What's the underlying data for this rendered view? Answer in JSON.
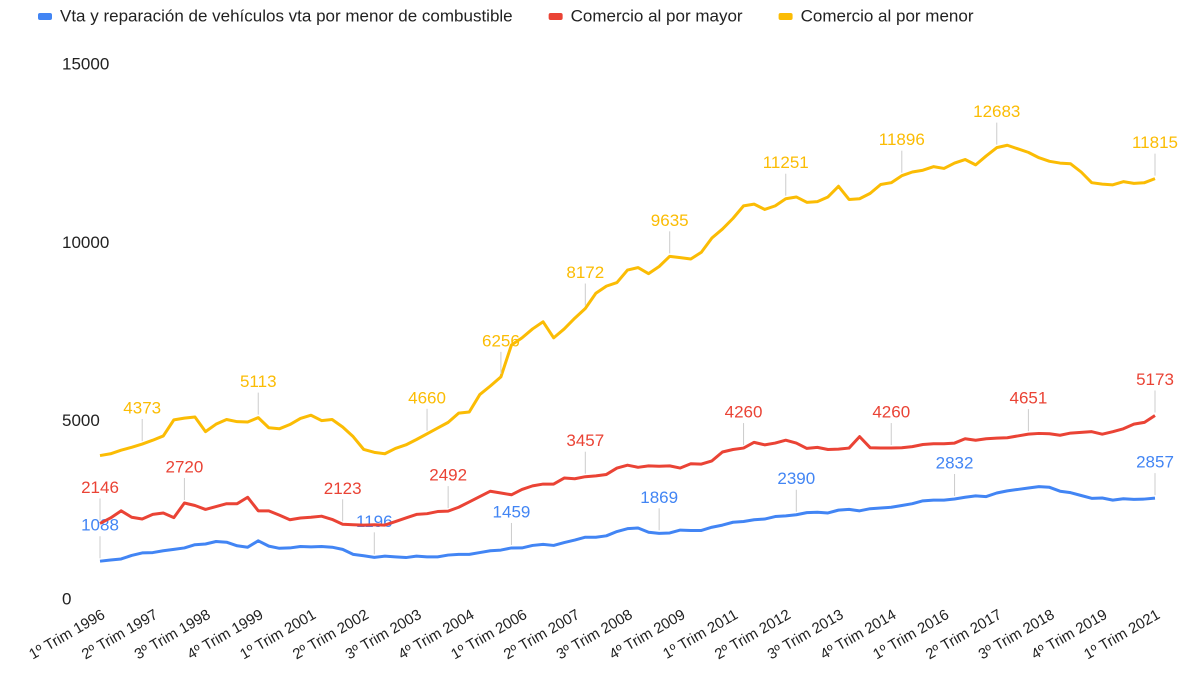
{
  "chart_data": {
    "type": "line",
    "categories": [
      "1º Trim 1996",
      null,
      null,
      null,
      null,
      "2º Trim 1997",
      null,
      null,
      null,
      null,
      "3º Trim 1998",
      null,
      null,
      null,
      null,
      "4º Trim 1999",
      null,
      null,
      null,
      null,
      "1º Trim 2001",
      null,
      null,
      null,
      null,
      "2º Trim 2002",
      null,
      null,
      null,
      null,
      "3º Trim 2003",
      null,
      null,
      null,
      null,
      "4º Trim 2004",
      null,
      null,
      null,
      null,
      "1º Trim 2006",
      null,
      null,
      null,
      null,
      "2º Trim 2007",
      null,
      null,
      null,
      null,
      "3º Trim 2008",
      null,
      null,
      null,
      null,
      "4º Trim 2009",
      null,
      null,
      null,
      null,
      "1º Trim 2011",
      null,
      null,
      null,
      null,
      "2º Trim 2012",
      null,
      null,
      null,
      null,
      "3º Trim 2013",
      null,
      null,
      null,
      null,
      "4º Trim 2014",
      null,
      null,
      null,
      null,
      "1º Trim 2016",
      null,
      null,
      null,
      null,
      "2º Trim 2017",
      null,
      null,
      null,
      null,
      "3º Trim 2018",
      null,
      null,
      null,
      null,
      "4º Trim 2019",
      null,
      null,
      null,
      null,
      "1º Trim 2021"
    ],
    "series": [
      {
        "name": "Vta y reparación de vehículos vta por menor de combustible",
        "color": "#4285f4",
        "values": [
          1088,
          1120,
          1150,
          1250,
          1320,
          1330,
          1380,
          1420,
          1460,
          1550,
          1570,
          1640,
          1620,
          1520,
          1480,
          1660,
          1510,
          1450,
          1460,
          1500,
          1490,
          1500,
          1480,
          1420,
          1280,
          1240,
          1196,
          1230,
          1210,
          1190,
          1230,
          1210,
          1210,
          1260,
          1280,
          1280,
          1330,
          1380,
          1400,
          1459,
          1460,
          1530,
          1560,
          1530,
          1610,
          1680,
          1760,
          1760,
          1800,
          1920,
          2000,
          2020,
          1900,
          1869,
          1880,
          1960,
          1950,
          1950,
          2040,
          2100,
          2180,
          2200,
          2250,
          2270,
          2340,
          2360,
          2390,
          2450,
          2460,
          2440,
          2520,
          2540,
          2500,
          2560,
          2580,
          2600,
          2650,
          2700,
          2780,
          2800,
          2800,
          2832,
          2880,
          2920,
          2900,
          3000,
          3060,
          3100,
          3140,
          3180,
          3160,
          3050,
          3010,
          2930,
          2850,
          2860,
          2800,
          2840,
          2820,
          2830,
          2857
        ],
        "value_labels": [
          "1088",
          null,
          null,
          null,
          null,
          null,
          null,
          null,
          null,
          null,
          null,
          null,
          null,
          null,
          null,
          null,
          null,
          null,
          null,
          null,
          null,
          null,
          null,
          null,
          null,
          null,
          "1196",
          null,
          null,
          null,
          null,
          null,
          null,
          null,
          null,
          null,
          null,
          null,
          null,
          "1459",
          null,
          null,
          null,
          null,
          null,
          null,
          null,
          null,
          null,
          null,
          null,
          null,
          null,
          "1869",
          null,
          null,
          null,
          null,
          null,
          null,
          null,
          null,
          null,
          null,
          null,
          null,
          "2390",
          null,
          null,
          null,
          null,
          null,
          null,
          null,
          null,
          null,
          null,
          null,
          null,
          null,
          null,
          "2832",
          null,
          null,
          null,
          null,
          null,
          null,
          null,
          null,
          null,
          null,
          null,
          null,
          null,
          null,
          null,
          null,
          null,
          null,
          "2857"
        ]
      },
      {
        "name": "Comercio al por mayor",
        "color": "#ea4335",
        "values": [
          2146,
          2300,
          2500,
          2320,
          2270,
          2400,
          2440,
          2310,
          2720,
          2650,
          2540,
          2620,
          2700,
          2700,
          2880,
          2500,
          2500,
          2380,
          2250,
          2300,
          2320,
          2350,
          2260,
          2123,
          2110,
          2100,
          2110,
          2100,
          2200,
          2300,
          2400,
          2420,
          2480,
          2492,
          2600,
          2750,
          2900,
          3050,
          3000,
          2950,
          3100,
          3200,
          3250,
          3250,
          3420,
          3400,
          3457,
          3480,
          3520,
          3700,
          3780,
          3720,
          3760,
          3750,
          3760,
          3700,
          3820,
          3810,
          3900,
          4150,
          4220,
          4260,
          4420,
          4350,
          4400,
          4480,
          4400,
          4250,
          4280,
          4220,
          4230,
          4260,
          4580,
          4270,
          4260,
          4260,
          4270,
          4300,
          4360,
          4380,
          4380,
          4400,
          4520,
          4480,
          4520,
          4540,
          4550,
          4600,
          4651,
          4670,
          4660,
          4620,
          4680,
          4700,
          4720,
          4650,
          4720,
          4800,
          4930,
          4980,
          5173
        ],
        "value_labels": [
          "2146",
          null,
          null,
          null,
          null,
          null,
          null,
          null,
          "2720",
          null,
          null,
          null,
          null,
          null,
          null,
          null,
          null,
          null,
          null,
          null,
          null,
          null,
          null,
          "2123",
          null,
          null,
          null,
          null,
          null,
          null,
          null,
          null,
          null,
          "2492",
          null,
          null,
          null,
          null,
          null,
          null,
          null,
          null,
          null,
          null,
          null,
          null,
          "3457",
          null,
          null,
          null,
          null,
          null,
          null,
          null,
          null,
          null,
          null,
          null,
          null,
          null,
          null,
          "4260",
          null,
          null,
          null,
          null,
          null,
          null,
          null,
          null,
          null,
          null,
          null,
          null,
          null,
          "4260",
          null,
          null,
          null,
          null,
          null,
          null,
          null,
          null,
          null,
          null,
          null,
          null,
          "4651",
          null,
          null,
          null,
          null,
          null,
          null,
          null,
          null,
          null,
          null,
          null,
          "5173"
        ]
      },
      {
        "name": "Comercio al por menor",
        "color": "#fbbc04",
        "values": [
          4050,
          4100,
          4200,
          4280,
          4373,
          4480,
          4600,
          5050,
          5100,
          5130,
          4720,
          4930,
          5060,
          5000,
          4990,
          5113,
          4830,
          4800,
          4920,
          5090,
          5180,
          5030,
          5060,
          4850,
          4580,
          4220,
          4140,
          4100,
          4250,
          4350,
          4500,
          4660,
          4820,
          4980,
          5240,
          5270,
          5760,
          6000,
          6256,
          7150,
          7350,
          7600,
          7800,
          7350,
          7600,
          7900,
          8172,
          8600,
          8800,
          8900,
          9250,
          9320,
          9150,
          9350,
          9635,
          9600,
          9560,
          9750,
          10150,
          10400,
          10700,
          11050,
          11100,
          10950,
          11050,
          11251,
          11300,
          11150,
          11170,
          11300,
          11600,
          11230,
          11250,
          11400,
          11650,
          11700,
          11896,
          12000,
          12050,
          12150,
          12100,
          12250,
          12350,
          12200,
          12450,
          12683,
          12750,
          12650,
          12550,
          12400,
          12300,
          12250,
          12230,
          12000,
          11700,
          11660,
          11640,
          11730,
          11680,
          11700,
          11815
        ],
        "value_labels": [
          null,
          null,
          null,
          null,
          "4373",
          null,
          null,
          null,
          null,
          null,
          null,
          null,
          null,
          null,
          null,
          "5113",
          null,
          null,
          null,
          null,
          null,
          null,
          null,
          null,
          null,
          null,
          null,
          null,
          null,
          null,
          null,
          "4660",
          null,
          null,
          null,
          null,
          null,
          null,
          "6256",
          null,
          null,
          null,
          null,
          null,
          null,
          null,
          "8172",
          null,
          null,
          null,
          null,
          null,
          null,
          null,
          "9635",
          null,
          null,
          null,
          null,
          null,
          null,
          null,
          null,
          null,
          null,
          "11251",
          null,
          null,
          null,
          null,
          null,
          null,
          null,
          null,
          null,
          null,
          "11896",
          null,
          null,
          null,
          null,
          null,
          null,
          null,
          null,
          "12683",
          null,
          null,
          null,
          null,
          null,
          null,
          null,
          null,
          null,
          null,
          null,
          null,
          null,
          null,
          "11815"
        ]
      }
    ],
    "ylim": [
      0,
      15000
    ],
    "yticks": [
      0,
      5000,
      10000,
      15000
    ],
    "grid": false,
    "legend": "top"
  }
}
